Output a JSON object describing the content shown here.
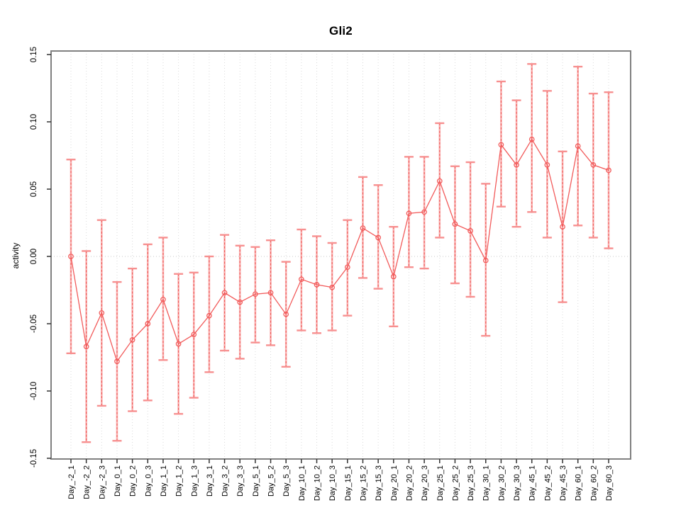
{
  "figure": {
    "background": "#ffffff"
  },
  "chart_data": {
    "type": "line",
    "title": "Gli2",
    "xlabel": "",
    "ylabel": "activity",
    "ylim": [
      -0.15,
      0.155
    ],
    "grid": "vertical dotted gridline at every category; dotted horizontal line at y=0; no legend",
    "legend": "none",
    "marker": "open-circle",
    "error_bars": "symmetric whiskers with end caps",
    "y_ticks": [
      {
        "label": "0.15",
        "value": 0.15
      },
      {
        "label": "0.10",
        "value": 0.1
      },
      {
        "label": "0.05",
        "value": 0.05
      },
      {
        "label": "0.00",
        "value": 0.0
      },
      {
        "label": "-0.05",
        "value": -0.05
      },
      {
        "label": "-0.10",
        "value": -0.1
      },
      {
        "label": "-0.15",
        "value": -0.15
      }
    ],
    "categories": [
      "Day_-2_1",
      "Day_-2_2",
      "Day_-2_3",
      "Day_0_1",
      "Day_0_2",
      "Day_0_3",
      "Day_1_1",
      "Day_1_2",
      "Day_1_3",
      "Day_3_1",
      "Day_3_2",
      "Day_3_3",
      "Day_5_1",
      "Day_5_2",
      "Day_5_3",
      "Day_10_1",
      "Day_10_2",
      "Day_10_3",
      "Day_15_1",
      "Day_15_2",
      "Day_15_3",
      "Day_20_1",
      "Day_20_2",
      "Day_20_3",
      "Day_25_1",
      "Day_25_2",
      "Day_25_3",
      "Day_30_1",
      "Day_30_2",
      "Day_30_3",
      "Day_45_1",
      "Day_45_2",
      "Day_45_3",
      "Day_60_1",
      "Day_60_2",
      "Day_60_3"
    ],
    "series": [
      {
        "name": "mean",
        "values": [
          0.0,
          -0.067,
          -0.042,
          -0.078,
          -0.062,
          -0.05,
          -0.032,
          -0.065,
          -0.058,
          -0.044,
          -0.027,
          -0.034,
          -0.028,
          -0.027,
          -0.043,
          -0.017,
          -0.021,
          -0.023,
          -0.008,
          0.021,
          0.014,
          -0.015,
          0.032,
          0.033,
          0.056,
          0.024,
          0.019,
          -0.003,
          0.083,
          0.068,
          0.087,
          0.068,
          0.022,
          0.082,
          0.068,
          0.064
        ]
      },
      {
        "name": "upper",
        "values": [
          0.072,
          0.004,
          0.027,
          -0.019,
          -0.009,
          0.009,
          0.014,
          -0.013,
          -0.012,
          0.0,
          0.016,
          0.008,
          0.007,
          0.012,
          -0.004,
          0.02,
          0.015,
          0.01,
          0.027,
          0.059,
          0.053,
          0.022,
          0.074,
          0.074,
          0.099,
          0.067,
          0.07,
          0.054,
          0.13,
          0.116,
          0.143,
          0.123,
          0.078,
          0.141,
          0.121,
          0.122
        ]
      },
      {
        "name": "lower",
        "values": [
          -0.072,
          -0.138,
          -0.111,
          -0.137,
          -0.115,
          -0.107,
          -0.077,
          -0.117,
          -0.105,
          -0.086,
          -0.07,
          -0.076,
          -0.064,
          -0.066,
          -0.082,
          -0.055,
          -0.057,
          -0.055,
          -0.044,
          -0.016,
          -0.024,
          -0.052,
          -0.008,
          -0.009,
          0.014,
          -0.02,
          -0.03,
          -0.059,
          0.037,
          0.022,
          0.033,
          0.014,
          -0.034,
          0.023,
          0.014,
          0.006
        ]
      }
    ],
    "colors": {
      "point_stroke": "#f25b5b",
      "connect_line": "#f25b5b",
      "bar_pale": "#f9b3b3",
      "bar_dash": "#ef5350",
      "cap": "#f79090",
      "gridline": "#dadada",
      "zero_line": "#c9c9c9",
      "box_border": "#808080",
      "tick_mark": "#333333",
      "label_text": "#000000"
    }
  }
}
